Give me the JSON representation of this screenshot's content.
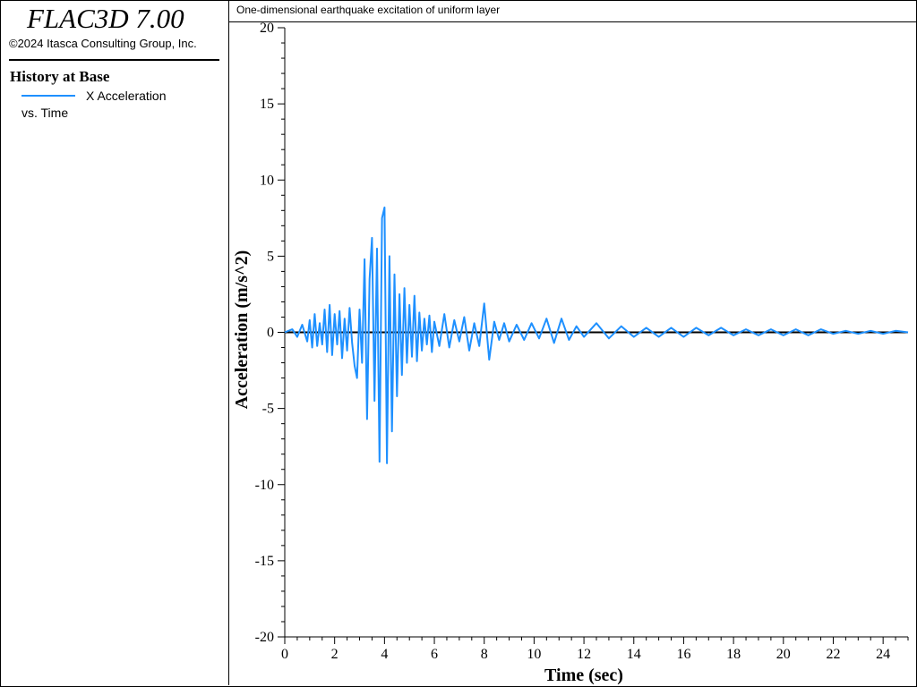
{
  "app": {
    "title": "FLAC3D 7.00",
    "copyright": "©2024 Itasca Consulting Group, Inc."
  },
  "legend": {
    "heading": "History at Base",
    "series_label": "X Acceleration",
    "vs_label": "vs. Time"
  },
  "colors": {
    "series": "#1e90ff",
    "axis": "#000000"
  },
  "chart_data": {
    "type": "line",
    "title": "One-dimensional earthquake excitation of uniform layer",
    "xlabel": "Time (sec)",
    "ylabel": "Acceleration (m/s^2)",
    "xlim": [
      0,
      25
    ],
    "ylim": [
      -20,
      20
    ],
    "xticks": [
      0,
      2,
      4,
      6,
      8,
      10,
      12,
      14,
      16,
      18,
      20,
      22,
      24
    ],
    "yticks": [
      -20,
      -15,
      -10,
      -5,
      0,
      5,
      10,
      15,
      20
    ],
    "grid": false,
    "series": [
      {
        "name": "X Acceleration",
        "x": [
          0,
          0.3,
          0.5,
          0.7,
          0.9,
          1.0,
          1.1,
          1.2,
          1.3,
          1.4,
          1.5,
          1.6,
          1.7,
          1.8,
          1.9,
          2.0,
          2.1,
          2.2,
          2.3,
          2.4,
          2.5,
          2.6,
          2.7,
          2.8,
          2.9,
          3.0,
          3.1,
          3.2,
          3.3,
          3.4,
          3.5,
          3.6,
          3.7,
          3.8,
          3.9,
          4.0,
          4.1,
          4.2,
          4.3,
          4.4,
          4.5,
          4.6,
          4.7,
          4.8,
          4.9,
          5.0,
          5.1,
          5.2,
          5.3,
          5.4,
          5.5,
          5.6,
          5.7,
          5.8,
          5.9,
          6.0,
          6.2,
          6.4,
          6.6,
          6.8,
          7.0,
          7.2,
          7.4,
          7.6,
          7.8,
          8.0,
          8.2,
          8.4,
          8.6,
          8.8,
          9.0,
          9.3,
          9.6,
          9.9,
          10.2,
          10.5,
          10.8,
          11.1,
          11.4,
          11.7,
          12.0,
          12.5,
          13.0,
          13.5,
          14.0,
          14.5,
          15.0,
          15.5,
          16.0,
          16.5,
          17.0,
          17.5,
          18.0,
          18.5,
          19.0,
          19.5,
          20.0,
          20.5,
          21.0,
          21.5,
          22.0,
          22.5,
          23.0,
          23.5,
          24.0,
          24.5,
          25.0
        ],
        "values": [
          0,
          0.2,
          -0.3,
          0.5,
          -0.6,
          0.8,
          -1.0,
          1.2,
          -0.9,
          0.6,
          -0.8,
          1.5,
          -1.3,
          1.8,
          -1.5,
          1.2,
          -0.8,
          1.4,
          -1.7,
          0.9,
          -1.2,
          1.6,
          -0.7,
          -2.2,
          -3.0,
          1.5,
          -2.0,
          4.8,
          -5.7,
          3.5,
          6.2,
          -4.5,
          5.5,
          -8.5,
          7.5,
          8.2,
          -8.6,
          5.0,
          -6.5,
          3.8,
          -4.2,
          2.5,
          -2.8,
          2.9,
          -2.0,
          1.8,
          -1.6,
          2.4,
          -1.9,
          1.3,
          -1.2,
          0.9,
          -0.8,
          1.1,
          -1.3,
          0.7,
          -0.9,
          1.2,
          -1.0,
          0.8,
          -0.6,
          1.0,
          -1.2,
          0.6,
          -0.9,
          1.9,
          -1.8,
          0.7,
          -0.5,
          0.6,
          -0.6,
          0.5,
          -0.5,
          0.6,
          -0.4,
          0.9,
          -0.7,
          0.9,
          -0.5,
          0.4,
          -0.3,
          0.6,
          -0.4,
          0.4,
          -0.3,
          0.3,
          -0.3,
          0.3,
          -0.3,
          0.3,
          -0.2,
          0.3,
          -0.2,
          0.2,
          -0.2,
          0.2,
          -0.2,
          0.2,
          -0.2,
          0.2,
          -0.1,
          0.1,
          -0.1,
          0.1,
          -0.1,
          0.1,
          0.0
        ]
      }
    ]
  }
}
